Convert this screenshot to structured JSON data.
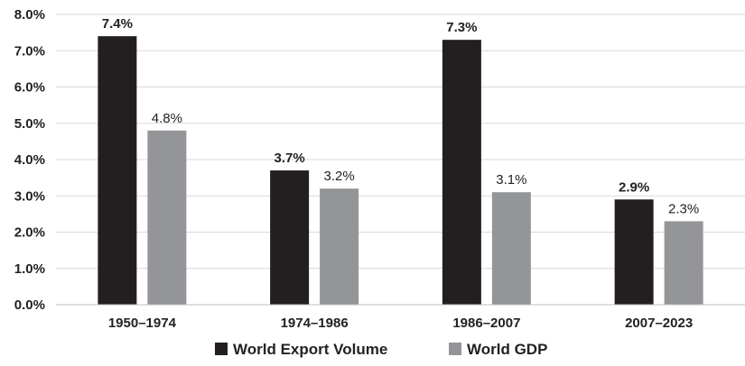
{
  "chart_data": {
    "type": "bar",
    "categories": [
      "1950–1974",
      "1974–1986",
      "1986–2007",
      "2007–2023"
    ],
    "series": [
      {
        "name": "World Export Volume",
        "values": [
          7.4,
          3.7,
          7.3,
          2.9
        ],
        "labels": [
          "7.4%",
          "3.7%",
          "7.3%",
          "2.9%"
        ],
        "color": "#231f20",
        "label_bold": true
      },
      {
        "name": "World GDP",
        "values": [
          4.8,
          3.2,
          3.1,
          2.3
        ],
        "labels": [
          "4.8%",
          "3.2%",
          "3.1%",
          "2.3%"
        ],
        "color": "#939598",
        "label_bold": false
      }
    ],
    "ylim": [
      0,
      8
    ],
    "yticks": [
      0,
      1,
      2,
      3,
      4,
      5,
      6,
      7,
      8
    ],
    "ytick_labels": [
      "0.0%",
      "1.0%",
      "2.0%",
      "3.0%",
      "4.0%",
      "5.0%",
      "6.0%",
      "7.0%",
      "8.0%"
    ],
    "title": "",
    "xlabel": "",
    "ylabel": "",
    "grid": true,
    "gridline_color": "#d9d9d9",
    "legend_position": "bottom"
  }
}
